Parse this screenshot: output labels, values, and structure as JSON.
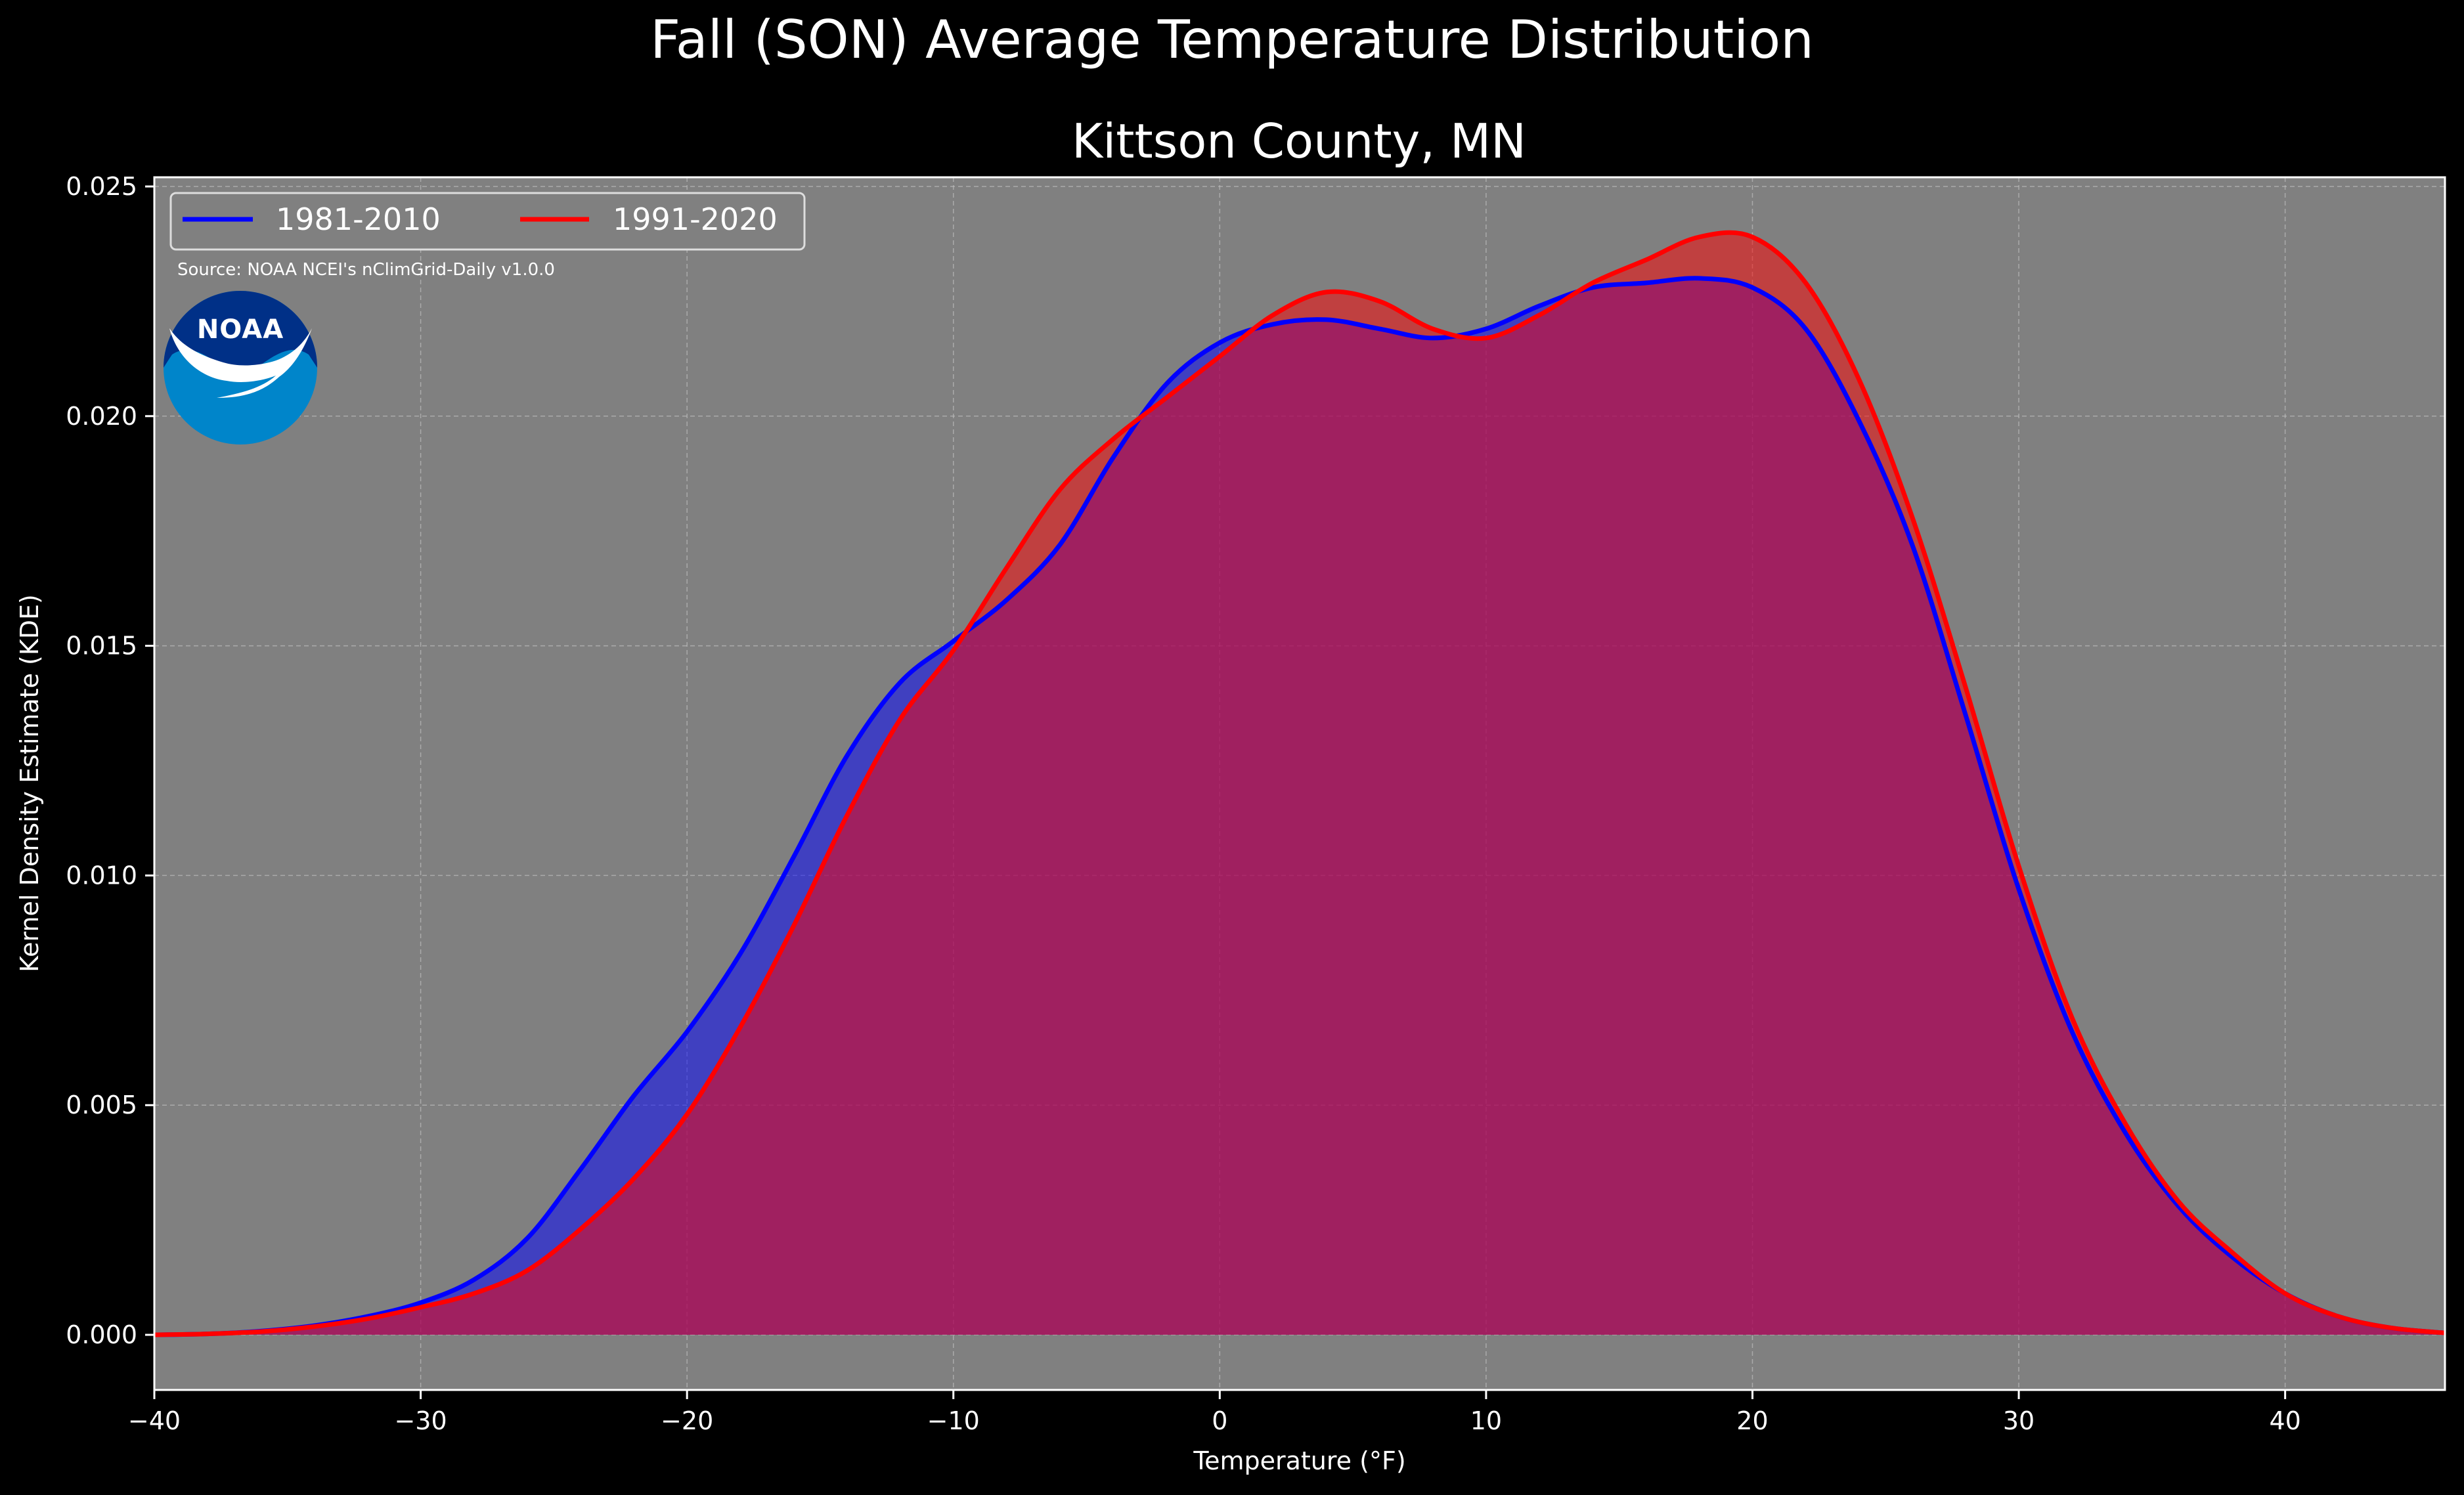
{
  "figure": {
    "suptitle": "Fall (SON) Average Temperature Distribution",
    "title": "Kittson County, MN",
    "source": "Source: NOAA NCEI's nClimGrid-Daily v1.0.0",
    "logo_text": "NOAA",
    "background_color": "#000000",
    "axes_face_color": "#808080"
  },
  "chart_data": {
    "type": "area",
    "xlabel": "Temperature (°F)",
    "ylabel": "Kernel Density Estimate (KDE)",
    "xlim": [
      -40,
      46
    ],
    "ylim": [
      -0.0012,
      0.0252
    ],
    "xticks": [
      -40,
      -30,
      -20,
      -10,
      0,
      10,
      20,
      30,
      40
    ],
    "xtick_labels": [
      "−40",
      "−30",
      "−20",
      "−10",
      "0",
      "10",
      "20",
      "30",
      "40"
    ],
    "yticks": [
      0,
      0.005,
      0.01,
      0.015,
      0.02,
      0.025
    ],
    "ytick_labels": [
      "0.000",
      "0.005",
      "0.010",
      "0.015",
      "0.020",
      "0.025"
    ],
    "grid": true,
    "legend_position": "top-left",
    "series": [
      {
        "name": "1981-2010",
        "color": "#0000ff",
        "fill_color": "#0000ff",
        "points": [
          [
            -40,
            0.0
          ],
          [
            -38,
            2e-05
          ],
          [
            -36,
            8e-05
          ],
          [
            -34,
            0.0002
          ],
          [
            -32,
            0.0004
          ],
          [
            -30,
            0.0007
          ],
          [
            -28,
            0.0012
          ],
          [
            -26,
            0.0021
          ],
          [
            -24,
            0.0036
          ],
          [
            -22,
            0.0052
          ],
          [
            -20,
            0.0066
          ],
          [
            -18,
            0.0083
          ],
          [
            -16,
            0.0104
          ],
          [
            -14,
            0.0126
          ],
          [
            -12,
            0.0142
          ],
          [
            -10,
            0.0151
          ],
          [
            -8,
            0.016
          ],
          [
            -6,
            0.0172
          ],
          [
            -4,
            0.0191
          ],
          [
            -2,
            0.0207
          ],
          [
            0,
            0.0216
          ],
          [
            2,
            0.022
          ],
          [
            4,
            0.0221
          ],
          [
            6,
            0.0219
          ],
          [
            8,
            0.0217
          ],
          [
            10,
            0.0219
          ],
          [
            12,
            0.0224
          ],
          [
            14,
            0.0228
          ],
          [
            16,
            0.0229
          ],
          [
            18,
            0.023
          ],
          [
            20,
            0.0228
          ],
          [
            22,
            0.0219
          ],
          [
            24,
            0.0199
          ],
          [
            26,
            0.0172
          ],
          [
            28,
            0.0135
          ],
          [
            30,
            0.0097
          ],
          [
            32,
            0.0066
          ],
          [
            34,
            0.0044
          ],
          [
            36,
            0.0028
          ],
          [
            38,
            0.0017
          ],
          [
            40,
            0.0009
          ],
          [
            42,
            0.0004
          ],
          [
            44,
            0.00015
          ],
          [
            46,
            4e-05
          ]
        ]
      },
      {
        "name": "1991-2020",
        "color": "#ff0000",
        "fill_color": "#ff0000",
        "points": [
          [
            -40,
            0.0
          ],
          [
            -38,
            2e-05
          ],
          [
            -36,
            7e-05
          ],
          [
            -34,
            0.00018
          ],
          [
            -32,
            0.00035
          ],
          [
            -30,
            0.0006
          ],
          [
            -28,
            0.0009
          ],
          [
            -26,
            0.0014
          ],
          [
            -24,
            0.0023
          ],
          [
            -22,
            0.0034
          ],
          [
            -20,
            0.0048
          ],
          [
            -18,
            0.0067
          ],
          [
            -16,
            0.0089
          ],
          [
            -14,
            0.0113
          ],
          [
            -12,
            0.0134
          ],
          [
            -10,
            0.0149
          ],
          [
            -8,
            0.0167
          ],
          [
            -6,
            0.0184
          ],
          [
            -4,
            0.0195
          ],
          [
            -2,
            0.0204
          ],
          [
            0,
            0.0213
          ],
          [
            2,
            0.0222
          ],
          [
            4,
            0.0227
          ],
          [
            6,
            0.0225
          ],
          [
            8,
            0.0219
          ],
          [
            10,
            0.0217
          ],
          [
            12,
            0.0222
          ],
          [
            14,
            0.0229
          ],
          [
            16,
            0.0234
          ],
          [
            18,
            0.0239
          ],
          [
            20,
            0.0239
          ],
          [
            22,
            0.0229
          ],
          [
            24,
            0.0208
          ],
          [
            26,
            0.0178
          ],
          [
            28,
            0.0141
          ],
          [
            30,
            0.0102
          ],
          [
            32,
            0.0069
          ],
          [
            34,
            0.0046
          ],
          [
            36,
            0.0029
          ],
          [
            38,
            0.0018
          ],
          [
            40,
            0.0009
          ],
          [
            42,
            0.0004
          ],
          [
            44,
            0.00015
          ],
          [
            46,
            4e-05
          ]
        ]
      }
    ]
  }
}
